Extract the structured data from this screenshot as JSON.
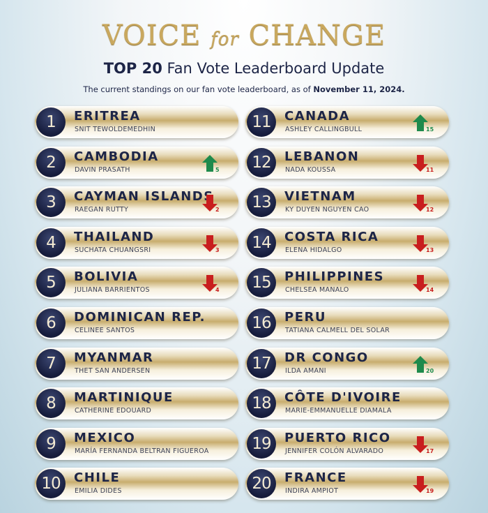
{
  "header": {
    "title_a": "VOICE",
    "title_b": "for",
    "title_c": "CHANGE",
    "subtitle_bold": "TOP 20",
    "subtitle_rest": "Fan Vote Leaderboard Update",
    "desc": "The current standings on our fan vote leaderboard, as of",
    "date": "November 11, 2024."
  },
  "colors": {
    "up": "#1e8a4c",
    "down": "#c81e1e",
    "navy": "#1d2547",
    "gold": "#c9a85e"
  },
  "entries": [
    {
      "rank": "1",
      "country": "ERITREA",
      "name": "SNIT TEWOLDEMEDHIN",
      "dir": "",
      "change": ""
    },
    {
      "rank": "2",
      "country": "CAMBODIA",
      "name": "DAVIN PRASATH",
      "dir": "up",
      "change": "5"
    },
    {
      "rank": "3",
      "country": "CAYMAN ISLANDS",
      "name": "RAEGAN RUTTY",
      "dir": "down",
      "change": "2"
    },
    {
      "rank": "4",
      "country": "THAILAND",
      "name": "SUCHATA CHUANGSRI",
      "dir": "down",
      "change": "3"
    },
    {
      "rank": "5",
      "country": "BOLIVIA",
      "name": "JULIANA BARRIENTOS",
      "dir": "down",
      "change": "4"
    },
    {
      "rank": "6",
      "country": "DOMINICAN REP.",
      "name": "CELINEE SANTOS",
      "dir": "",
      "change": ""
    },
    {
      "rank": "7",
      "country": "MYANMAR",
      "name": "THET SAN ANDERSEN",
      "dir": "",
      "change": ""
    },
    {
      "rank": "8",
      "country": "MARTINIQUE",
      "name": "CATHERINE EDOUARD",
      "dir": "",
      "change": ""
    },
    {
      "rank": "9",
      "country": "MEXICO",
      "name": "MARÍA FERNANDA BELTRAN FIGUEROA",
      "dir": "",
      "change": ""
    },
    {
      "rank": "10",
      "country": "CHILE",
      "name": "EMILIA DIDES",
      "dir": "",
      "change": ""
    },
    {
      "rank": "11",
      "country": "CANADA",
      "name": "ASHLEY CALLINGBULL",
      "dir": "up",
      "change": "15"
    },
    {
      "rank": "12",
      "country": "LEBANON",
      "name": "NADA KOUSSA",
      "dir": "down",
      "change": "11"
    },
    {
      "rank": "13",
      "country": "VIETNAM",
      "name": "KY DUYEN NGUYEN CAO",
      "dir": "down",
      "change": "12"
    },
    {
      "rank": "14",
      "country": "COSTA RICA",
      "name": "ELENA HIDALGO",
      "dir": "down",
      "change": "13"
    },
    {
      "rank": "15",
      "country": "PHILIPPINES",
      "name": "CHELSEA MANALO",
      "dir": "down",
      "change": "14"
    },
    {
      "rank": "16",
      "country": "PERU",
      "name": "TATIANA CALMELL DEL SOLAR",
      "dir": "",
      "change": ""
    },
    {
      "rank": "17",
      "country": "DR CONGO",
      "name": "ILDA AMANI",
      "dir": "up",
      "change": "20"
    },
    {
      "rank": "18",
      "country": "CÔTE D'IVOIRE",
      "name": "MARIE-EMMANUELLE DIAMALA",
      "dir": "",
      "change": ""
    },
    {
      "rank": "19",
      "country": "PUERTO RICO",
      "name": "JENNIFER COLÓN ALVARADO",
      "dir": "down",
      "change": "17"
    },
    {
      "rank": "20",
      "country": "FRANCE",
      "name": "INDIRA AMPIOT",
      "dir": "down",
      "change": "19"
    }
  ]
}
